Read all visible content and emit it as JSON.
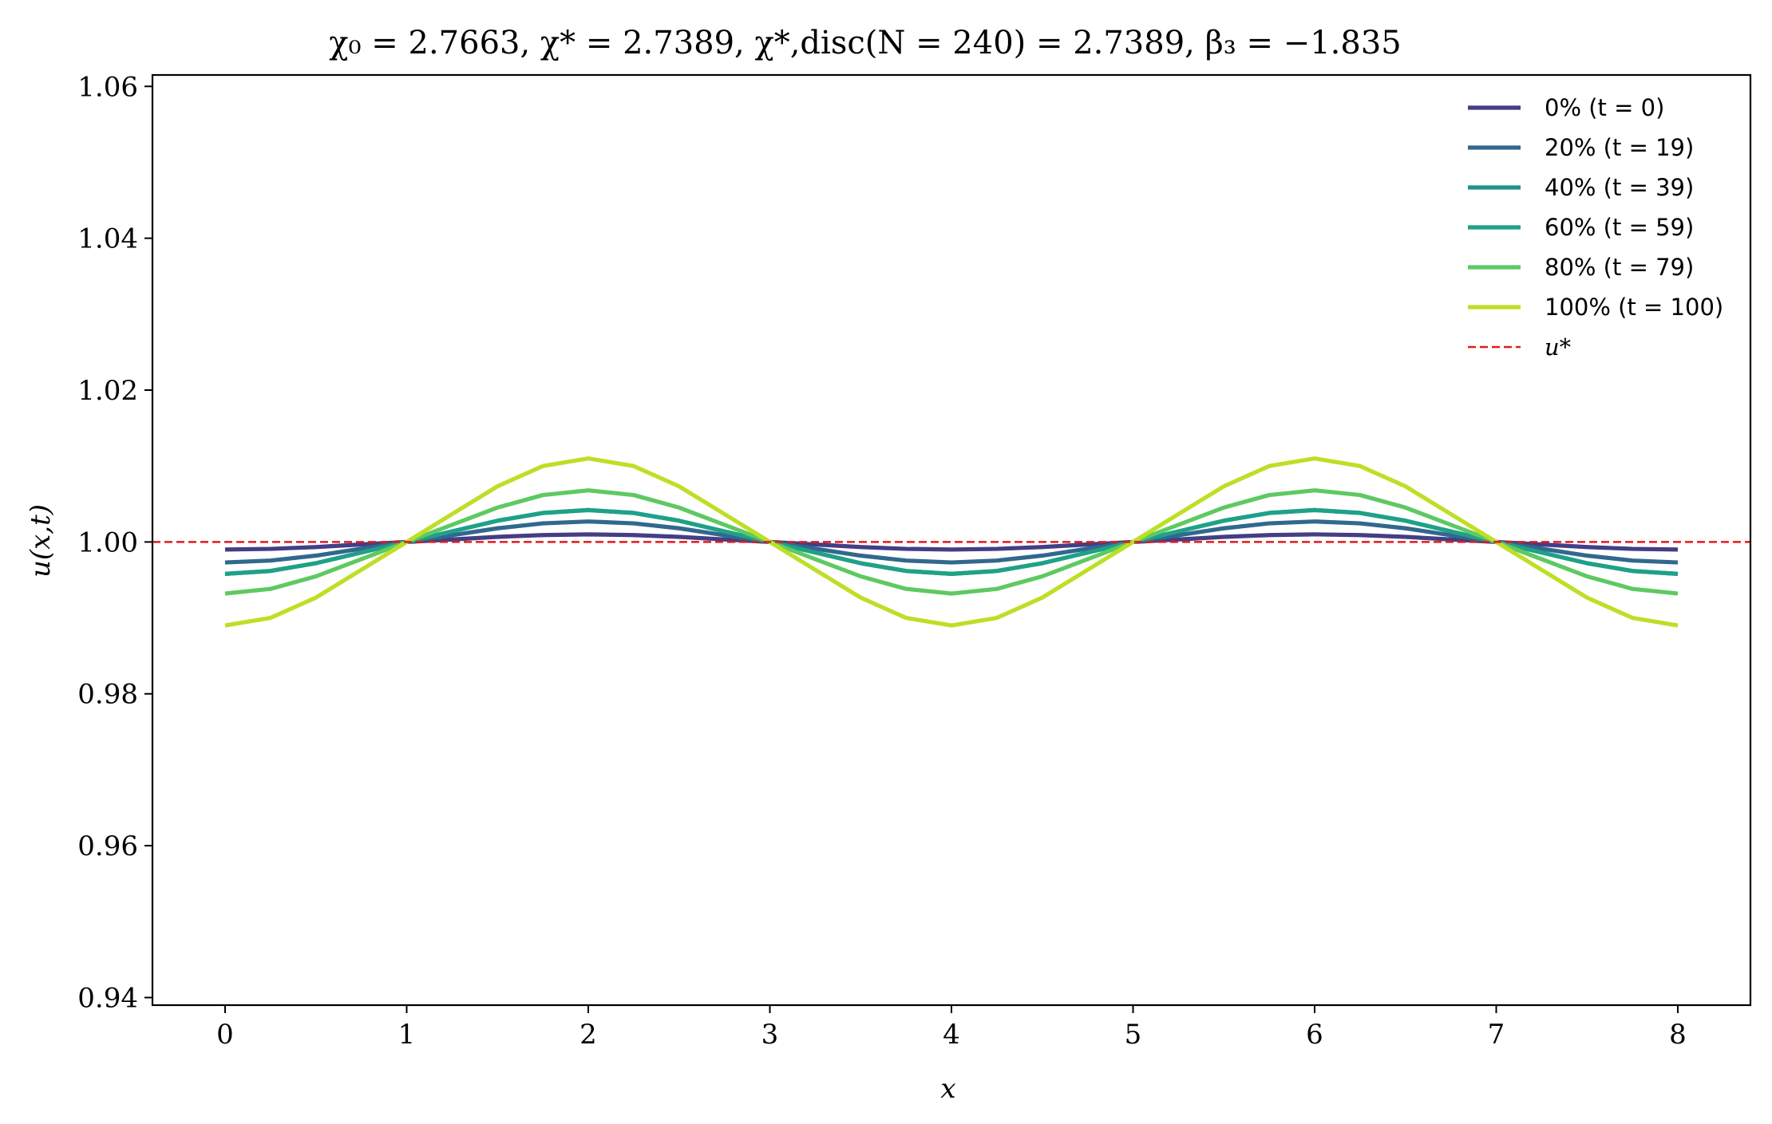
{
  "chart_data": {
    "type": "line",
    "title": "χ₀ = 2.7663,  χ* = 2.7389,  χ*,disc(N = 240) = 2.7389,  β₃ = −1.835",
    "xlabel": "x",
    "ylabel": "u(x,t)",
    "xlim": [
      -0.4,
      8.4
    ],
    "ylim": [
      0.939,
      1.0615
    ],
    "xticks": [
      0,
      1,
      2,
      3,
      4,
      5,
      6,
      7,
      8
    ],
    "xtick_labels": [
      "0",
      "1",
      "2",
      "3",
      "4",
      "5",
      "6",
      "7",
      "8"
    ],
    "yticks": [
      0.94,
      0.96,
      0.98,
      1.0,
      1.02,
      1.04,
      1.06
    ],
    "ytick_labels": [
      "0.94",
      "0.96",
      "0.98",
      "1.00",
      "1.02",
      "1.04",
      "1.06"
    ],
    "grid": false,
    "legend_position": "top-right",
    "x": [
      0,
      0.25,
      0.5,
      0.75,
      1,
      1.25,
      1.5,
      1.75,
      2,
      2.25,
      2.5,
      2.75,
      3,
      3.25,
      3.5,
      3.75,
      4,
      4.25,
      4.5,
      4.75,
      5,
      5.25,
      5.5,
      5.75,
      6,
      6.25,
      6.5,
      6.75,
      7,
      7.25,
      7.5,
      7.75,
      8
    ],
    "series": [
      {
        "name": "0% (t = 0)",
        "color": "#433e85",
        "values": [
          0.999,
          0.99909,
          0.99933,
          0.99967,
          1.0,
          1.00033,
          1.00067,
          1.00091,
          1.001,
          1.00091,
          1.00067,
          1.00033,
          1.0,
          0.99967,
          0.99933,
          0.99909,
          0.999,
          0.99909,
          0.99933,
          0.99967,
          1.0,
          1.00033,
          1.00067,
          1.00091,
          1.001,
          1.00091,
          1.00067,
          1.00033,
          1.0,
          0.99967,
          0.99933,
          0.99909,
          0.999
        ]
      },
      {
        "name": "20% (t = 19)",
        "color": "#31688e",
        "values": [
          0.9973,
          0.99755,
          0.9982,
          0.99911,
          1.0,
          1.00089,
          1.0018,
          1.00245,
          1.0027,
          1.00245,
          1.0018,
          1.00089,
          1.0,
          0.99911,
          0.9982,
          0.99755,
          0.9973,
          0.99755,
          0.9982,
          0.99911,
          1.0,
          1.00089,
          1.0018,
          1.00245,
          1.0027,
          1.00245,
          1.0018,
          1.00089,
          1.0,
          0.99911,
          0.9982,
          0.99755,
          0.9973
        ]
      },
      {
        "name": "40% (t = 39)",
        "color": "#21918c",
        "values": [
          0.9958,
          0.99618,
          0.9972,
          0.99861,
          1.0,
          1.00139,
          1.0028,
          1.00382,
          1.0042,
          1.00382,
          1.0028,
          1.00139,
          1.0,
          0.99861,
          0.9972,
          0.99618,
          0.9958,
          0.99618,
          0.9972,
          0.99861,
          1.0,
          1.00139,
          1.0028,
          1.00382,
          1.0042,
          1.00382,
          1.0028,
          1.00139,
          1.0,
          0.99861,
          0.9972,
          0.99618,
          0.9958
        ]
      },
      {
        "name": "60% (t = 59)",
        "color": "#1fa187",
        "values": [
          0.9958,
          0.99618,
          0.9972,
          0.99861,
          1.0,
          1.00139,
          1.0028,
          1.00382,
          1.0042,
          1.00382,
          1.0028,
          1.00139,
          1.0,
          0.99861,
          0.9972,
          0.99618,
          0.9958,
          0.99618,
          0.9972,
          0.99861,
          1.0,
          1.00139,
          1.0028,
          1.00382,
          1.0042,
          1.00382,
          1.0028,
          1.00139,
          1.0,
          0.99861,
          0.9972,
          0.99618,
          0.9958
        ]
      },
      {
        "name": "80% (t = 79)",
        "color": "#5ec962",
        "values": [
          0.9932,
          0.99382,
          0.99547,
          0.99774,
          1.0,
          1.00226,
          1.00453,
          1.00618,
          1.0068,
          1.00618,
          1.00453,
          1.00226,
          1.0,
          0.99774,
          0.99547,
          0.99382,
          0.9932,
          0.99382,
          0.99547,
          0.99774,
          1.0,
          1.00226,
          1.00453,
          1.00618,
          1.0068,
          1.00618,
          1.00453,
          1.00226,
          1.0,
          0.99774,
          0.99547,
          0.99382,
          0.9932
        ]
      },
      {
        "name": "100% (t = 100)",
        "color": "#bddf26",
        "values": [
          0.989,
          0.99,
          0.99267,
          0.99633,
          1.0,
          1.00367,
          1.00733,
          1.01,
          1.011,
          1.01,
          1.00733,
          1.00367,
          1.0,
          0.99633,
          0.99267,
          0.99,
          0.989,
          0.99,
          0.99267,
          0.99633,
          1.0,
          1.00367,
          1.00733,
          1.01,
          1.011,
          1.01,
          1.00733,
          1.00367,
          1.0,
          0.99633,
          0.99267,
          0.99,
          0.989
        ]
      }
    ],
    "reference_line": {
      "name": "u*",
      "y": 1.0,
      "color": "#e31a1c",
      "style": "dashed"
    }
  }
}
